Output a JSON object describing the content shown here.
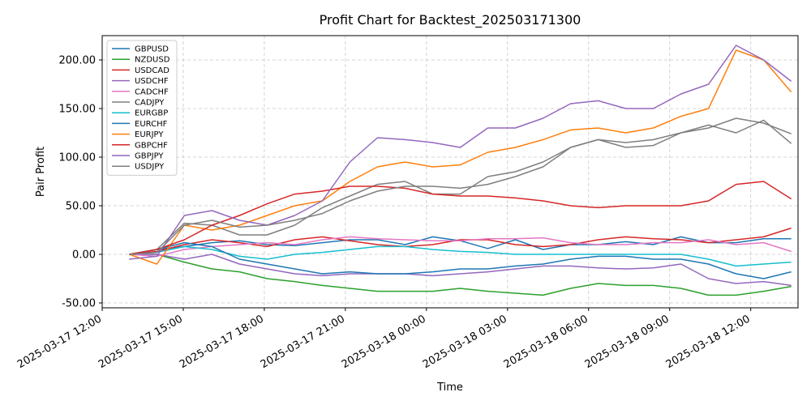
{
  "chart_data": {
    "type": "line",
    "title": "Profit Chart for Backtest_202503171300",
    "xlabel": "Time",
    "ylabel": "Pair Profit",
    "x_start": "2025-03-17 13:00",
    "x_end": "2025-03-18 13:30",
    "xlim": [
      "2025-03-17 12:00",
      "2025-03-18 13:45"
    ],
    "ylim": [
      -55,
      225
    ],
    "x_ticks": [
      "2025-03-17 12:00",
      "2025-03-17 15:00",
      "2025-03-17 18:00",
      "2025-03-17 21:00",
      "2025-03-18 00:00",
      "2025-03-18 03:00",
      "2025-03-18 06:00",
      "2025-03-18 09:00",
      "2025-03-18 12:00"
    ],
    "y_ticks": [
      "-50.00",
      "0.00",
      "50.00",
      "100.00",
      "150.00",
      "200.00"
    ],
    "y_tick_values": [
      -50,
      0,
      50,
      100,
      150,
      200
    ],
    "grid": true,
    "legend_position": "top-left",
    "series": [
      {
        "name": "GBPUSD",
        "color": "#1f77b4",
        "values": [
          0,
          5,
          8,
          12,
          14,
          10,
          9,
          12,
          15,
          15,
          10,
          18,
          14,
          6,
          15,
          5,
          10,
          10,
          13,
          10,
          18,
          12,
          12,
          16,
          16
        ]
      },
      {
        "name": "NZDUSD",
        "color": "#2ca02c",
        "values": [
          0,
          0,
          -8,
          -15,
          -18,
          -25,
          -28,
          -32,
          -35,
          -38,
          -38,
          -38,
          -35,
          -38,
          -40,
          -42,
          -35,
          -30,
          -32,
          -32,
          -35,
          -42,
          -42,
          -38,
          -33
        ]
      },
      {
        "name": "USDCAD",
        "color": "#d62728",
        "values": [
          0,
          3,
          10,
          15,
          12,
          8,
          15,
          18,
          14,
          10,
          8,
          10,
          15,
          15,
          10,
          8,
          10,
          15,
          18,
          16,
          15,
          12,
          15,
          18,
          27
        ]
      },
      {
        "name": "USDCHF",
        "color": "#9467bd",
        "values": [
          0,
          0,
          -5,
          0,
          -10,
          -15,
          -20,
          -22,
          -20,
          -20,
          -20,
          -22,
          -20,
          -18,
          -15,
          -12,
          -12,
          -14,
          -15,
          -14,
          -10,
          -25,
          -30,
          -28,
          -32
        ]
      },
      {
        "name": "CADCHF",
        "color": "#e377c2",
        "values": [
          0,
          -2,
          5,
          8,
          10,
          12,
          10,
          15,
          18,
          16,
          15,
          14,
          14,
          16,
          16,
          17,
          12,
          10,
          10,
          12,
          12,
          15,
          10,
          12,
          3
        ]
      },
      {
        "name": "CADJPY",
        "color": "#7f7f7f",
        "values": [
          0,
          5,
          32,
          30,
          20,
          20,
          30,
          48,
          60,
          72,
          75,
          62,
          62,
          80,
          85,
          95,
          110,
          118,
          115,
          118,
          125,
          133,
          125,
          138,
          114
        ]
      },
      {
        "name": "EURGBP",
        "color": "#17becf",
        "values": [
          0,
          2,
          8,
          5,
          -2,
          -5,
          0,
          2,
          5,
          8,
          8,
          5,
          3,
          2,
          0,
          0,
          0,
          0,
          0,
          0,
          0,
          -5,
          -12,
          -10,
          -8
        ]
      },
      {
        "name": "EURCHF",
        "color": "#1f77b4",
        "values": [
          0,
          5,
          12,
          8,
          -5,
          -10,
          -15,
          -20,
          -18,
          -20,
          -20,
          -18,
          -15,
          -15,
          -12,
          -10,
          -5,
          -2,
          -2,
          -5,
          -5,
          -10,
          -20,
          -25,
          -18
        ]
      },
      {
        "name": "EURJPY",
        "color": "#ff7f0e",
        "values": [
          0,
          -10,
          30,
          25,
          30,
          40,
          50,
          55,
          75,
          90,
          95,
          90,
          92,
          105,
          110,
          118,
          128,
          130,
          125,
          130,
          142,
          150,
          210,
          200,
          167
        ]
      },
      {
        "name": "GBPCHF",
        "color": "#d62728",
        "values": [
          0,
          5,
          15,
          30,
          40,
          52,
          62,
          65,
          70,
          70,
          68,
          62,
          60,
          60,
          58,
          55,
          50,
          48,
          50,
          50,
          50,
          55,
          72,
          75,
          57
        ]
      },
      {
        "name": "GBPJPY",
        "color": "#9467bd",
        "values": [
          -5,
          -2,
          40,
          45,
          35,
          30,
          40,
          55,
          95,
          120,
          118,
          115,
          110,
          130,
          130,
          140,
          155,
          158,
          150,
          150,
          165,
          175,
          215,
          200,
          178
        ]
      },
      {
        "name": "USDJPY",
        "color": "#7f7f7f",
        "values": [
          0,
          2,
          30,
          35,
          28,
          30,
          35,
          42,
          55,
          65,
          70,
          70,
          68,
          72,
          80,
          90,
          110,
          118,
          110,
          112,
          125,
          130,
          140,
          135,
          124
        ]
      }
    ]
  }
}
